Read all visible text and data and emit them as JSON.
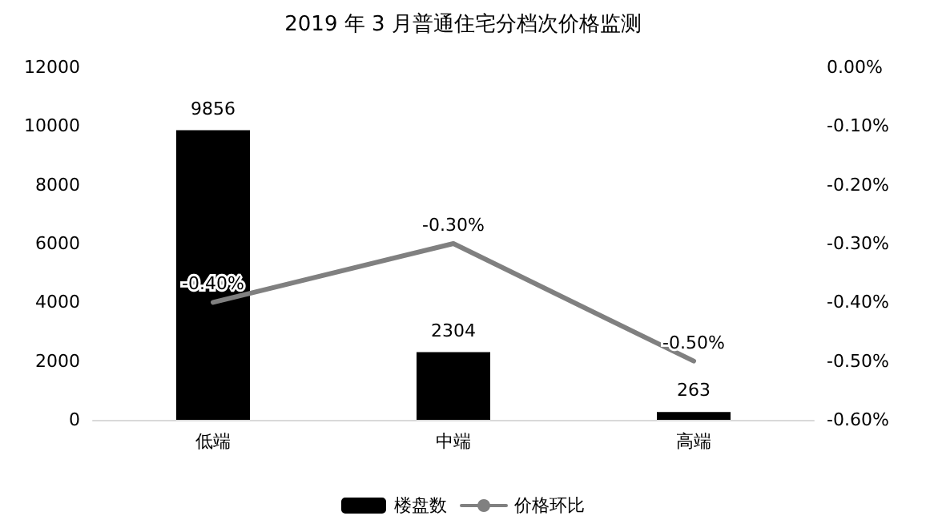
{
  "chart_data": {
    "type": "bar",
    "title": "2019 年 3 月普通住宅分档次价格监测",
    "categories": [
      "低端",
      "中端",
      "高端"
    ],
    "series": [
      {
        "name": "楼盘数",
        "color": "#000000",
        "values": [
          9856,
          2304,
          263
        ],
        "value_labels": [
          "9856",
          "2304",
          "263"
        ]
      },
      {
        "name": "价格环比",
        "type": "line",
        "axis": "y2",
        "color": "#808080",
        "values": [
          -0.4,
          -0.3,
          -0.5
        ],
        "value_labels": [
          "-0.40%",
          "-0.30%",
          "-0.50%"
        ]
      }
    ],
    "ylim": [
      0,
      12000
    ],
    "yticks": [
      0,
      2000,
      4000,
      6000,
      8000,
      10000,
      12000
    ],
    "y2lim": [
      -0.6,
      0
    ],
    "y2ticks": [
      {
        "value": 0,
        "label": "0.00%"
      },
      {
        "value": -0.1,
        "label": "-0.10%"
      },
      {
        "value": -0.2,
        "label": "-0.20%"
      },
      {
        "value": -0.3,
        "label": "-0.30%"
      },
      {
        "value": -0.4,
        "label": "-0.40%"
      },
      {
        "value": -0.5,
        "label": "-0.50%"
      },
      {
        "value": -0.6,
        "label": "-0.60%"
      }
    ],
    "grid": false,
    "legend": "bottom",
    "marker": "none",
    "line_style": "solid"
  }
}
